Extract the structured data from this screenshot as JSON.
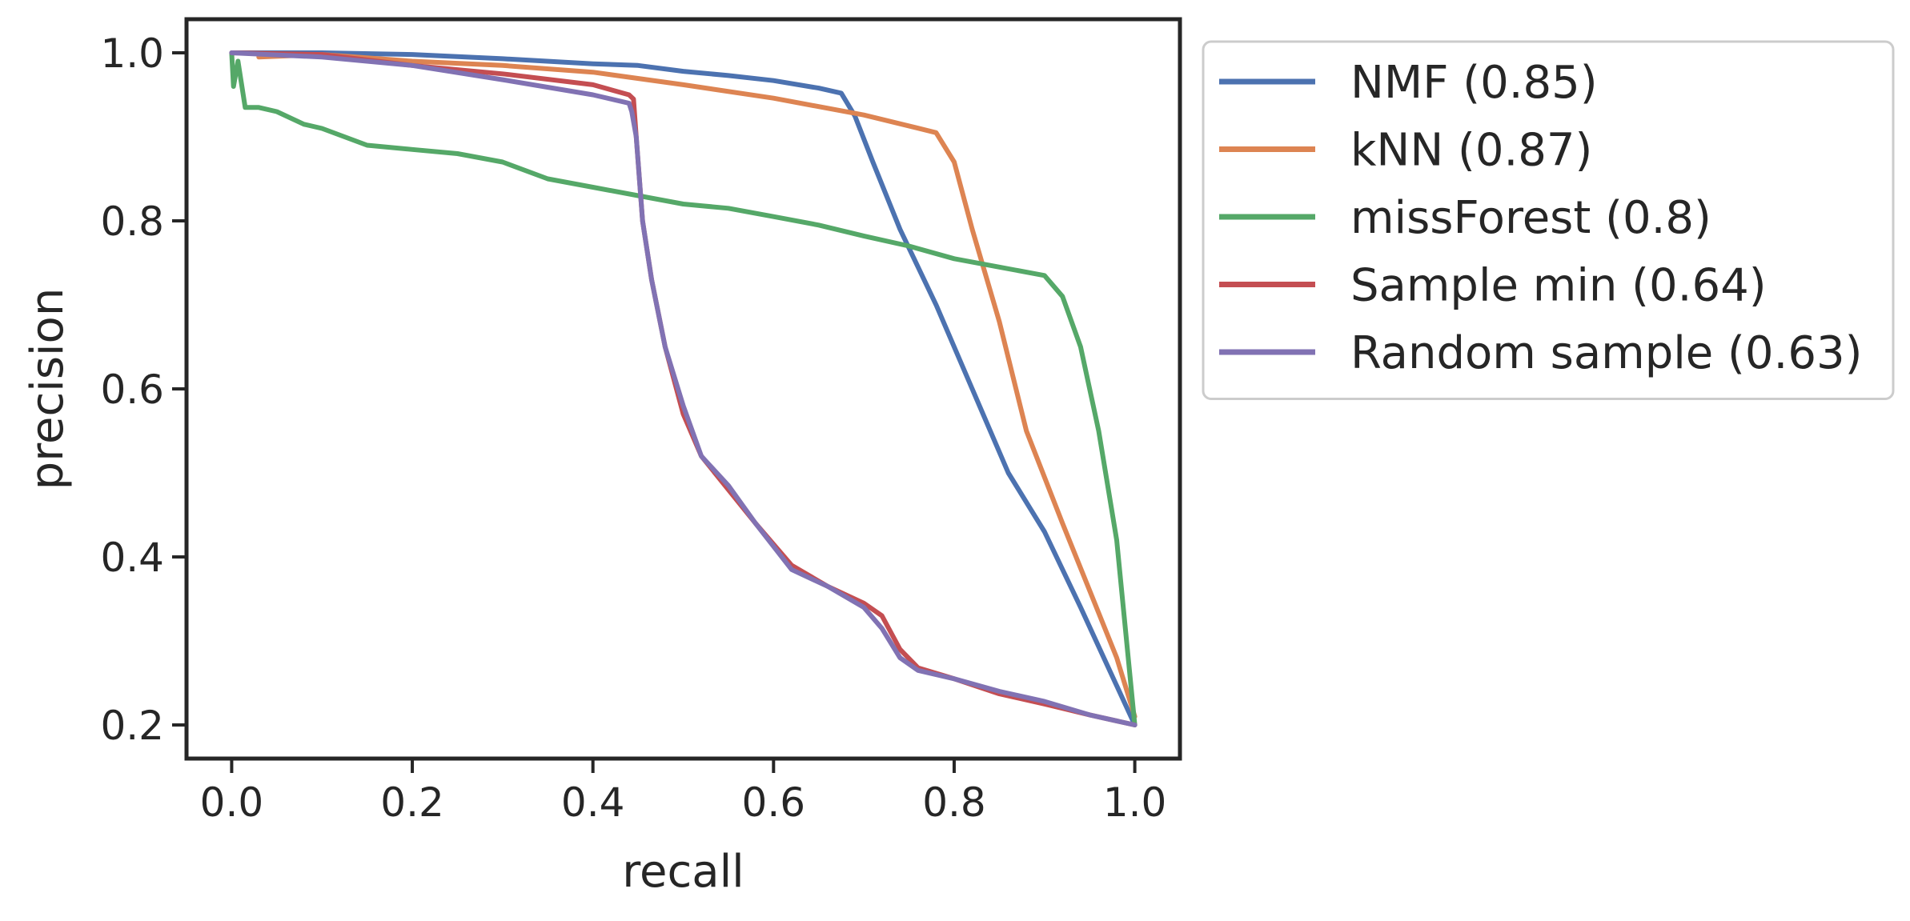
{
  "chart_data": {
    "type": "line",
    "title": "",
    "xlabel": "recall",
    "ylabel": "precision",
    "xlim": [
      -0.05,
      1.05
    ],
    "ylim": [
      0.16,
      1.04
    ],
    "xticks": [
      0.0,
      0.2,
      0.4,
      0.6,
      0.8,
      1.0
    ],
    "xtick_labels": [
      "0.0",
      "0.2",
      "0.4",
      "0.6",
      "0.8",
      "1.0"
    ],
    "yticks": [
      0.2,
      0.4,
      0.6,
      0.8,
      1.0
    ],
    "ytick_labels": [
      "0.2",
      "0.4",
      "0.6",
      "0.8",
      "1.0"
    ],
    "grid": false,
    "legend_position": "outside-right-top",
    "series": [
      {
        "name": "NMF (0.85)",
        "color": "#4c72b0",
        "points": [
          [
            0.0,
            1.0
          ],
          [
            0.1,
            1.0
          ],
          [
            0.2,
            0.998
          ],
          [
            0.3,
            0.993
          ],
          [
            0.4,
            0.987
          ],
          [
            0.45,
            0.985
          ],
          [
            0.5,
            0.978
          ],
          [
            0.55,
            0.973
          ],
          [
            0.6,
            0.967
          ],
          [
            0.65,
            0.958
          ],
          [
            0.675,
            0.952
          ],
          [
            0.69,
            0.925
          ],
          [
            0.71,
            0.87
          ],
          [
            0.74,
            0.79
          ],
          [
            0.78,
            0.7
          ],
          [
            0.82,
            0.6
          ],
          [
            0.86,
            0.5
          ],
          [
            0.9,
            0.43
          ],
          [
            0.94,
            0.34
          ],
          [
            0.97,
            0.27
          ],
          [
            1.0,
            0.2
          ]
        ]
      },
      {
        "name": "kNN (0.87)",
        "color": "#dd8452",
        "points": [
          [
            0.03,
            0.995
          ],
          [
            0.1,
            0.998
          ],
          [
            0.2,
            0.99
          ],
          [
            0.3,
            0.985
          ],
          [
            0.4,
            0.977
          ],
          [
            0.5,
            0.962
          ],
          [
            0.6,
            0.946
          ],
          [
            0.7,
            0.926
          ],
          [
            0.75,
            0.913
          ],
          [
            0.78,
            0.905
          ],
          [
            0.8,
            0.87
          ],
          [
            0.82,
            0.79
          ],
          [
            0.85,
            0.68
          ],
          [
            0.88,
            0.55
          ],
          [
            0.92,
            0.44
          ],
          [
            0.95,
            0.36
          ],
          [
            0.98,
            0.28
          ],
          [
            1.0,
            0.21
          ]
        ]
      },
      {
        "name": "missForest (0.8)",
        "color": "#55a868",
        "points": [
          [
            0.0,
            1.0
          ],
          [
            0.002,
            0.96
          ],
          [
            0.007,
            0.99
          ],
          [
            0.015,
            0.935
          ],
          [
            0.03,
            0.935
          ],
          [
            0.05,
            0.93
          ],
          [
            0.08,
            0.915
          ],
          [
            0.1,
            0.91
          ],
          [
            0.15,
            0.89
          ],
          [
            0.2,
            0.885
          ],
          [
            0.25,
            0.88
          ],
          [
            0.3,
            0.87
          ],
          [
            0.35,
            0.85
          ],
          [
            0.4,
            0.84
          ],
          [
            0.45,
            0.83
          ],
          [
            0.5,
            0.82
          ],
          [
            0.55,
            0.815
          ],
          [
            0.6,
            0.805
          ],
          [
            0.65,
            0.795
          ],
          [
            0.7,
            0.782
          ],
          [
            0.75,
            0.77
          ],
          [
            0.8,
            0.755
          ],
          [
            0.85,
            0.745
          ],
          [
            0.9,
            0.735
          ],
          [
            0.92,
            0.71
          ],
          [
            0.94,
            0.65
          ],
          [
            0.96,
            0.55
          ],
          [
            0.98,
            0.42
          ],
          [
            1.0,
            0.2
          ]
        ]
      },
      {
        "name": "Sample min (0.64)",
        "color": "#c44e52",
        "points": [
          [
            0.0,
            1.0
          ],
          [
            0.1,
            0.998
          ],
          [
            0.2,
            0.985
          ],
          [
            0.3,
            0.975
          ],
          [
            0.4,
            0.962
          ],
          [
            0.44,
            0.95
          ],
          [
            0.445,
            0.945
          ],
          [
            0.448,
            0.9
          ],
          [
            0.455,
            0.8
          ],
          [
            0.465,
            0.73
          ],
          [
            0.48,
            0.65
          ],
          [
            0.5,
            0.57
          ],
          [
            0.52,
            0.52
          ],
          [
            0.55,
            0.48
          ],
          [
            0.58,
            0.44
          ],
          [
            0.62,
            0.39
          ],
          [
            0.66,
            0.365
          ],
          [
            0.7,
            0.345
          ],
          [
            0.72,
            0.33
          ],
          [
            0.74,
            0.29
          ],
          [
            0.76,
            0.268
          ],
          [
            0.8,
            0.255
          ],
          [
            0.85,
            0.237
          ],
          [
            0.9,
            0.225
          ],
          [
            0.95,
            0.212
          ],
          [
            1.0,
            0.2
          ]
        ]
      },
      {
        "name": "Random sample (0.63)",
        "color": "#8172b3",
        "points": [
          [
            0.0,
            1.0
          ],
          [
            0.1,
            0.995
          ],
          [
            0.2,
            0.985
          ],
          [
            0.3,
            0.968
          ],
          [
            0.4,
            0.95
          ],
          [
            0.44,
            0.94
          ],
          [
            0.443,
            0.93
          ],
          [
            0.448,
            0.9
          ],
          [
            0.455,
            0.8
          ],
          [
            0.465,
            0.73
          ],
          [
            0.48,
            0.65
          ],
          [
            0.5,
            0.58
          ],
          [
            0.52,
            0.52
          ],
          [
            0.55,
            0.485
          ],
          [
            0.58,
            0.44
          ],
          [
            0.62,
            0.385
          ],
          [
            0.66,
            0.365
          ],
          [
            0.7,
            0.34
          ],
          [
            0.72,
            0.315
          ],
          [
            0.74,
            0.28
          ],
          [
            0.76,
            0.265
          ],
          [
            0.8,
            0.255
          ],
          [
            0.85,
            0.24
          ],
          [
            0.9,
            0.228
          ],
          [
            0.95,
            0.212
          ],
          [
            1.0,
            0.2
          ]
        ]
      }
    ]
  }
}
